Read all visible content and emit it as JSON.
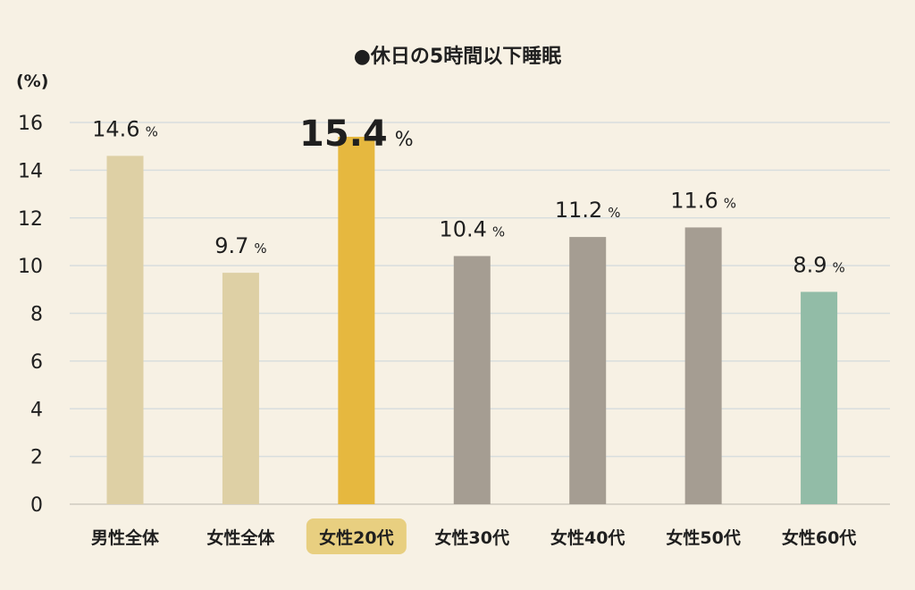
{
  "chart_data": {
    "type": "bar",
    "title": "●休日の5時間以下睡眠",
    "ylabel": "(%)",
    "ylim": [
      0,
      16
    ],
    "yticks": [
      0,
      2,
      4,
      6,
      8,
      10,
      12,
      14,
      16
    ],
    "grid": true,
    "categories": [
      "男性全体",
      "女性全体",
      "女性20代",
      "女性30代",
      "女性40代",
      "女性50代",
      "女性60代"
    ],
    "values": [
      14.6,
      9.7,
      15.4,
      10.4,
      11.2,
      11.6,
      8.9
    ],
    "value_labels": [
      "14.6",
      "9.7",
      "15.4",
      "10.4",
      "11.2",
      "11.6",
      "8.9"
    ],
    "value_unit": "%",
    "highlight_index": 2,
    "colors": [
      "#ded0a5",
      "#ded0a5",
      "#e6b83f",
      "#a59d92",
      "#a59d92",
      "#a59d92",
      "#92bca7"
    ],
    "highlight_label_bg": "#e8cf80"
  }
}
